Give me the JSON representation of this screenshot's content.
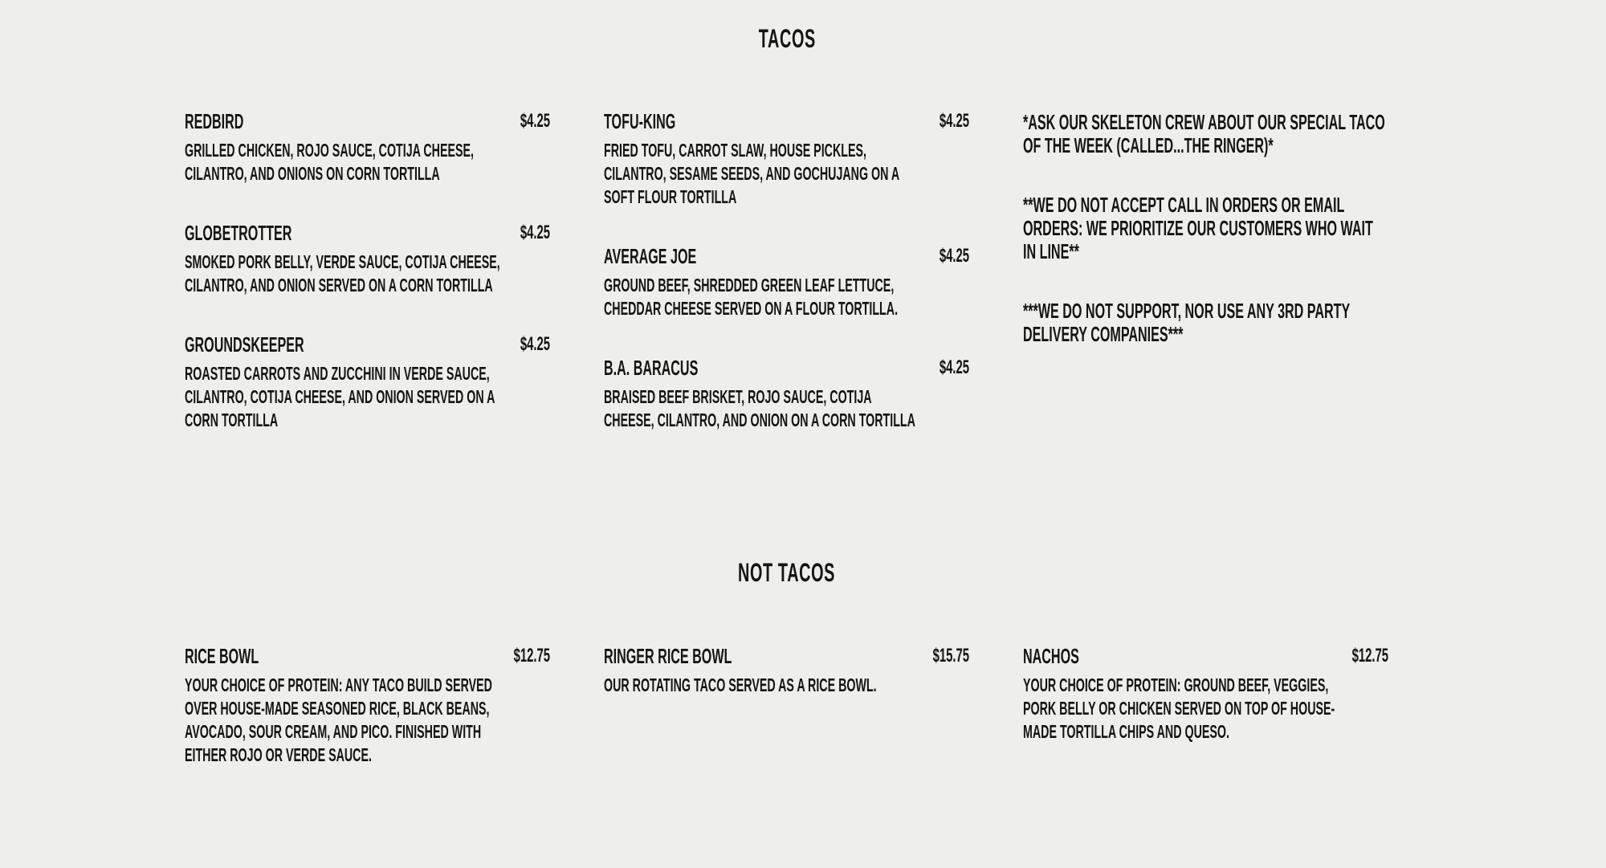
{
  "tacos": {
    "title": "TACOS",
    "columns": [
      [
        {
          "name": "REDBIRD",
          "price": "$4.25",
          "description": "GRILLED CHICKEN, ROJO SAUCE, COTIJA CHEESE, CILANTRO, AND ONIONS ON CORN TORTILLA"
        },
        {
          "name": "GLOBETROTTER",
          "price": "$4.25",
          "description": "SMOKED PORK BELLY, VERDE SAUCE, COTIJA CHEESE, CILANTRO, AND ONION SERVED ON A CORN TORTILLA"
        },
        {
          "name": "GROUNDSKEEPER",
          "price": "$4.25",
          "description": "ROASTED CARROTS AND ZUCCHINI IN VERDE SAUCE, CILANTRO, COTIJA CHEESE, AND ONION SERVED ON A CORN TORTILLA"
        }
      ],
      [
        {
          "name": "TOFU-KING",
          "price": "$4.25",
          "description": "FRIED TOFU, CARROT SLAW, HOUSE PICKLES, CILANTRO, SESAME SEEDS, AND GOCHUJANG ON A SOFT FLOUR TORTILLA"
        },
        {
          "name": "AVERAGE JOE",
          "price": "$4.25",
          "description": "GROUND BEEF, SHREDDED GREEN LEAF LETTUCE, CHEDDAR CHEESE SERVED ON A FLOUR TORTILLA."
        },
        {
          "name": "B.A. BARACUS",
          "price": "$4.25",
          "description": "BRAISED BEEF BRISKET, ROJO SAUCE, COTIJA CHEESE, CILANTRO, AND ONION ON A CORN TORTILLA"
        }
      ]
    ],
    "notes": [
      "*ASK OUR SKELETON CREW ABOUT OUR SPECIAL TACO OF THE WEEK (CALLED...THE RINGER)*",
      "**WE DO NOT ACCEPT CALL IN ORDERS OR EMAIL ORDERS: WE PRIORITIZE OUR CUSTOMERS WHO WAIT IN LINE**",
      "***WE DO NOT SUPPORT, NOR USE ANY 3RD PARTY DELIVERY COMPANIES***"
    ]
  },
  "not_tacos": {
    "title": "NOT TACOS",
    "items": [
      {
        "name": "RICE BOWL",
        "price": "$12.75",
        "description": "YOUR CHOICE OF PROTEIN: ANY TACO BUILD SERVED OVER HOUSE-MADE SEASONED RICE, BLACK BEANS, AVOCADO, SOUR CREAM, AND PICO. FINISHED WITH EITHER ROJO OR VERDE SAUCE."
      },
      {
        "name": "RINGER RICE BOWL",
        "price": "$15.75",
        "description": "OUR ROTATING TACO SERVED AS A RICE BOWL."
      },
      {
        "name": "NACHOS",
        "price": "$12.75",
        "description": "YOUR CHOICE OF PROTEIN: GROUND BEEF, VEGGIES, PORK BELLY OR CHICKEN SERVED ON TOP OF HOUSE-MADE TORTILLA CHIPS AND QUESO."
      }
    ]
  },
  "colors": {
    "background": "#eeeeec",
    "text": "#141414"
  }
}
